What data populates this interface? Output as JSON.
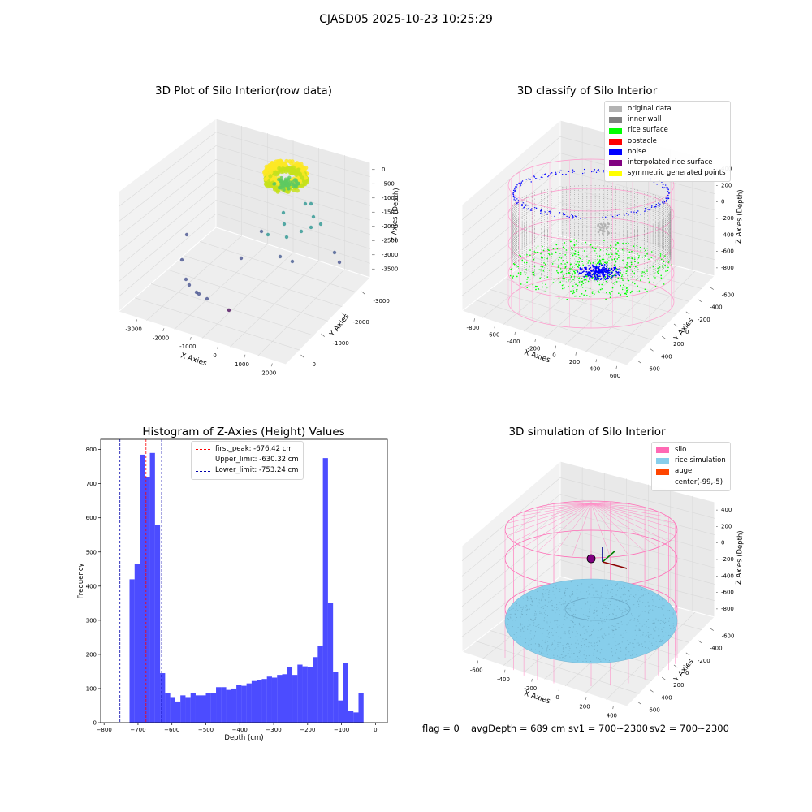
{
  "suptitle": "CJASD05 2025-10-23 10:25:29",
  "footer": {
    "flag": "flag = 0",
    "avg_depth": "avgDepth = 689 cm",
    "sv1": "sv1 = 700~2300",
    "sv2": "sv2 = 700~2300"
  },
  "chart_data": [
    {
      "type": "scatter",
      "title": "3D Plot of Silo Interior(row data)",
      "xlabel": "X Axies",
      "ylabel": "Y Axies",
      "zlabel": "Z Axies (Depth)",
      "x_ticks": [
        "-3000",
        "-2000",
        "-1000",
        "0",
        "1000",
        "2000"
      ],
      "y_ticks": [
        "0",
        "-1000",
        "-2000",
        "-3000"
      ],
      "z_ticks": [
        "0",
        "-500",
        "-1000",
        "-1500",
        "-2000",
        "-2500",
        "-3000",
        "-3500"
      ],
      "colormap": [
        "#440154",
        "#3b528b",
        "#21918c",
        "#5ec962",
        "#fde725"
      ]
    },
    {
      "type": "scatter",
      "title": "3D classify of Silo Interior",
      "xlabel": "X Axies",
      "ylabel": "Y Axies",
      "zlabel": "Z Axies (Depth)",
      "x_ticks": [
        "-800",
        "-600",
        "-400",
        "-200",
        "0",
        "200",
        "400",
        "600"
      ],
      "y_ticks": [
        "600",
        "400",
        "200",
        "0",
        "-200",
        "-400",
        "-600"
      ],
      "z_ticks": [
        "400",
        "200",
        "0",
        "-200",
        "-400",
        "-600",
        "-800"
      ],
      "legend": [
        {
          "name": "original data",
          "color": "#b3b3b3"
        },
        {
          "name": "inner wall",
          "color": "#808080"
        },
        {
          "name": "rice surface",
          "color": "#00ff00"
        },
        {
          "name": "obstacle",
          "color": "#ff0000"
        },
        {
          "name": "noise",
          "color": "#0000ff"
        },
        {
          "name": "interpolated rice surface",
          "color": "#800080"
        },
        {
          "name": "symmetric generated points",
          "color": "#ffff00"
        }
      ],
      "legend_loc": "upper right"
    },
    {
      "type": "bar",
      "title": "Histogram of Z-Axies (Height) Values",
      "xlabel": "Depth (cm)",
      "ylabel": "Frequency",
      "bar_color": "#0000ff",
      "bin_width": 15,
      "bin_start": -740,
      "values": [
        0,
        420,
        465,
        785,
        720,
        790,
        580,
        145,
        88,
        75,
        62,
        80,
        75,
        88,
        80,
        80,
        86,
        86,
        104,
        104,
        96,
        100,
        110,
        108,
        115,
        122,
        126,
        128,
        135,
        132,
        140,
        142,
        162,
        140,
        170,
        165,
        163,
        192,
        225,
        775,
        350,
        148,
        65,
        175,
        35,
        30,
        88
      ],
      "xlim": [
        -810,
        35
      ],
      "ylim": [
        0,
        830
      ],
      "x_ticks": [
        -800,
        -700,
        -600,
        -500,
        -400,
        -300,
        -200,
        -100,
        0
      ],
      "y_ticks": [
        0,
        100,
        200,
        300,
        400,
        500,
        600,
        700,
        800
      ],
      "vlines": [
        {
          "label": "first_peak: -676.42 cm",
          "x": -676.42,
          "color": "#ff0000"
        },
        {
          "label": "Upper_limit: -630.32 cm",
          "x": -630.32,
          "color": "#0000aa"
        },
        {
          "label": "Lower_limit: -753.24 cm",
          "x": -753.24,
          "color": "#0000aa"
        }
      ],
      "legend_loc": "upper center"
    },
    {
      "type": "scatter",
      "title": "3D simulation of Silo Interior",
      "xlabel": "X Axies",
      "ylabel": "Y Axies",
      "zlabel": "Z Axies (Depth)",
      "x_ticks": [
        "-600",
        "-400",
        "-200",
        "0",
        "200",
        "400"
      ],
      "y_ticks": [
        "600",
        "400",
        "200",
        "0",
        "-200",
        "-400",
        "-600"
      ],
      "z_ticks": [
        "400",
        "200",
        "0",
        "-200",
        "-400",
        "-600",
        "-800"
      ],
      "legend": [
        {
          "name": "silo",
          "color": "#ff69b4"
        },
        {
          "name": "rice simulation",
          "color": "#87ceeb"
        },
        {
          "name": "auger",
          "color": "#ff4500"
        },
        {
          "name": "center(-99,-5)",
          "color": "#ffffff"
        }
      ],
      "legend_loc": "upper right"
    }
  ]
}
